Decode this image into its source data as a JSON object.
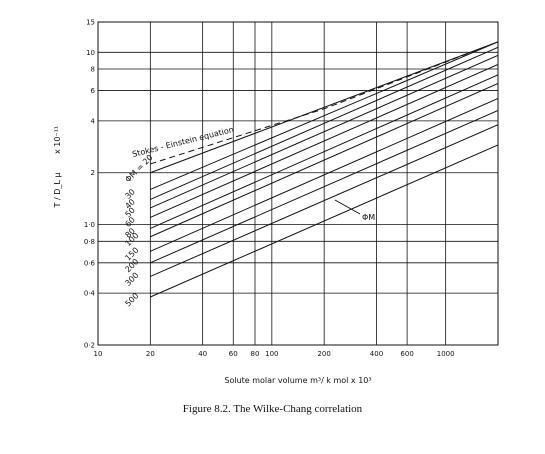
{
  "chart_data": {
    "type": "line",
    "title": "",
    "caption": "Figure 8.2.   The Wilke-Chang correlation",
    "xlabel": "Solute molar volume   m³/ k mol  x 10³",
    "ylabel_parts": {
      "fraction": "T / D_L μ",
      "multiplier": "x 10⁻¹¹"
    },
    "x_scale": "log",
    "y_scale": "log",
    "xlim": [
      10,
      2000
    ],
    "ylim": [
      0.2,
      15
    ],
    "x_ticks": [
      {
        "value": 10,
        "label": "10"
      },
      {
        "value": 20,
        "label": "20"
      },
      {
        "value": 40,
        "label": "40"
      },
      {
        "value": 60,
        "label": "60"
      },
      {
        "value": 80,
        "label": "80"
      },
      {
        "value": 100,
        "label": "100"
      },
      {
        "value": 200,
        "label": "200"
      },
      {
        "value": 400,
        "label": "400"
      },
      {
        "value": 600,
        "label": "600"
      },
      {
        "value": 1000,
        "label": "1000"
      }
    ],
    "y_ticks": [
      {
        "value": 0.2,
        "label": "0·2"
      },
      {
        "value": 0.4,
        "label": "0·4"
      },
      {
        "value": 0.6,
        "label": "0·6"
      },
      {
        "value": 0.8,
        "label": "0·8"
      },
      {
        "value": 1.0,
        "label": "1·0"
      },
      {
        "value": 2,
        "label": "2"
      },
      {
        "value": 4,
        "label": "4"
      },
      {
        "value": 6,
        "label": "6"
      },
      {
        "value": 8,
        "label": "8"
      },
      {
        "value": 10,
        "label": "10"
      },
      {
        "value": 15,
        "label": "15"
      }
    ],
    "grid": true,
    "stokes_einstein": {
      "label": "Stokes - Einstein  equation",
      "points": [
        [
          20,
          2.25
        ],
        [
          200,
          4.7
        ],
        [
          2000,
          11.5
        ]
      ]
    },
    "series_annotation": "ΦM",
    "series": [
      {
        "name": "ΦM = 20",
        "points": [
          [
            20,
            2.0
          ],
          [
            2000,
            11.5
          ]
        ]
      },
      {
        "name": "30",
        "points": [
          [
            20,
            1.6
          ],
          [
            2000,
            11.5
          ]
        ]
      },
      {
        "name": "40",
        "points": [
          [
            20,
            1.4
          ],
          [
            2000,
            10.7
          ]
        ]
      },
      {
        "name": "50",
        "points": [
          [
            20,
            1.25
          ],
          [
            2000,
            9.6
          ]
        ]
      },
      {
        "name": "60",
        "points": [
          [
            20,
            1.1
          ],
          [
            2000,
            8.5
          ]
        ]
      },
      {
        "name": "80",
        "points": [
          [
            20,
            0.95
          ],
          [
            2000,
            7.4
          ]
        ]
      },
      {
        "name": "100",
        "points": [
          [
            20,
            0.85
          ],
          [
            2000,
            6.6
          ]
        ]
      },
      {
        "name": "150",
        "points": [
          [
            20,
            0.7
          ],
          [
            2000,
            5.4
          ]
        ]
      },
      {
        "name": "200",
        "points": [
          [
            20,
            0.6
          ],
          [
            2000,
            4.6
          ]
        ]
      },
      {
        "name": "300",
        "points": [
          [
            20,
            0.5
          ],
          [
            2000,
            3.8
          ]
        ]
      },
      {
        "name": "500",
        "points": [
          [
            20,
            0.38
          ],
          [
            2000,
            2.9
          ]
        ]
      }
    ]
  }
}
